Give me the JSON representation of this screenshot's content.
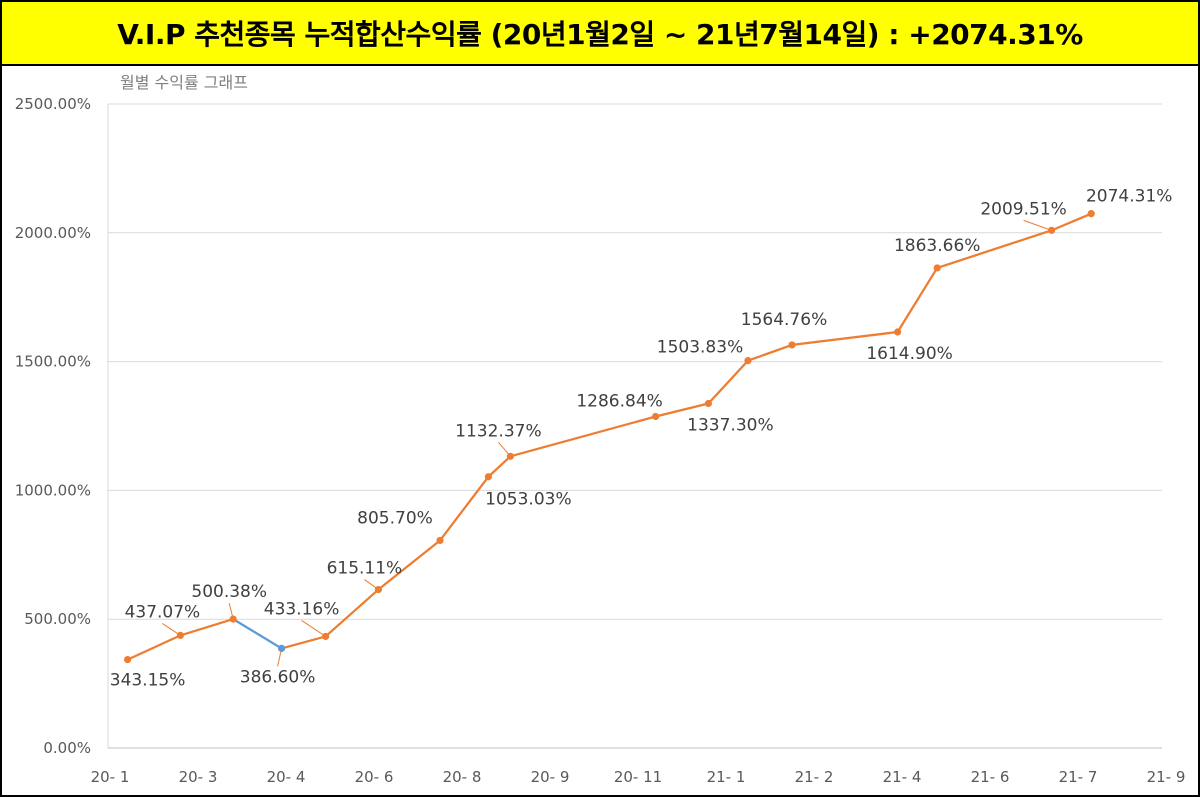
{
  "header": {
    "title": "V.I.P 추천종목 누적합산수익률 (20년1월2일 ~ 21년7월14일) : +2074.31%",
    "background": "#ffff00"
  },
  "chart_data": {
    "type": "line",
    "title": "월별 수익률 그래프",
    "xlabel": "",
    "ylabel": "",
    "ylim": [
      0,
      2500
    ],
    "y_ticks": [
      "0.00%",
      "500.00%",
      "1000.00%",
      "1500.00%",
      "2000.00%",
      "2500.00%"
    ],
    "y_tick_values": [
      0,
      500,
      1000,
      1500,
      2000,
      2500
    ],
    "x_ticks": [
      "20- 1",
      "20- 3",
      "20- 4",
      "20- 6",
      "20- 8",
      "20- 9",
      "20- 11",
      "21- 1",
      "21- 2",
      "21- 4",
      "21- 6",
      "21- 7",
      "21- 9"
    ],
    "grid": true,
    "line_color": "#ed7d31",
    "highlight_color": "#5b9bd5",
    "points": [
      {
        "x": 0.2,
        "y": 343.15,
        "label": "343.15%"
      },
      {
        "x": 0.8,
        "y": 437.07,
        "label": "437.07%"
      },
      {
        "x": 1.4,
        "y": 500.38,
        "label": "500.38%"
      },
      {
        "x": 1.95,
        "y": 386.6,
        "label": "386.60%"
      },
      {
        "x": 2.45,
        "y": 433.16,
        "label": "433.16%"
      },
      {
        "x": 3.05,
        "y": 615.11,
        "label": "615.11%"
      },
      {
        "x": 3.75,
        "y": 805.7,
        "label": "805.70%"
      },
      {
        "x": 4.3,
        "y": 1053.03,
        "label": "1053.03%"
      },
      {
        "x": 4.55,
        "y": 1132.37,
        "label": "1132.37%"
      },
      {
        "x": 6.2,
        "y": 1286.84,
        "label": "1286.84%"
      },
      {
        "x": 6.8,
        "y": 1337.3,
        "label": "1337.30%"
      },
      {
        "x": 7.25,
        "y": 1503.83,
        "label": "1503.83%"
      },
      {
        "x": 7.75,
        "y": 1564.76,
        "label": "1564.76%"
      },
      {
        "x": 8.95,
        "y": 1614.9,
        "label": "1614.90%"
      },
      {
        "x": 9.4,
        "y": 1863.66,
        "label": "1863.66%"
      },
      {
        "x": 10.7,
        "y": 2009.51,
        "label": "2009.51%"
      },
      {
        "x": 11.15,
        "y": 2074.31,
        "label": "2074.31%"
      }
    ]
  }
}
